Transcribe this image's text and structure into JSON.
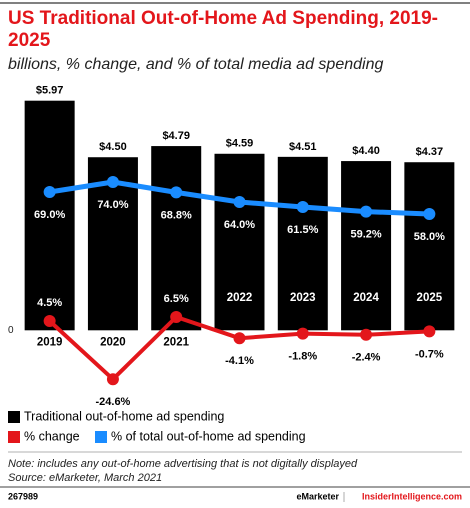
{
  "chart_data": {
    "type": "bar",
    "title": "US Traditional Out-of-Home Ad Spending, 2019-2025",
    "subtitle": "billions, % change, and % of total media ad spending",
    "categories": [
      "2019",
      "2020",
      "2021",
      "2022",
      "2023",
      "2024",
      "2025"
    ],
    "series": [
      {
        "name": "Traditional out-of-home ad spending",
        "type": "bar",
        "color": "#000000",
        "values": [
          5.97,
          4.5,
          4.79,
          4.59,
          4.51,
          4.4,
          4.37
        ],
        "value_labels": [
          "$5.97",
          "$4.50",
          "$4.79",
          "$4.59",
          "$4.51",
          "$4.40",
          "$4.37"
        ]
      },
      {
        "name": "% change",
        "type": "line",
        "axis": "y2",
        "color": "#e3161b",
        "values": [
          4.5,
          -24.6,
          6.5,
          -4.1,
          -1.8,
          -2.4,
          -0.7
        ],
        "value_labels": [
          "4.5%",
          "-24.6%",
          "6.5%",
          "-4.1%",
          "-1.8%",
          "-2.4%",
          "-0.7%"
        ]
      },
      {
        "name": "% of total out-of-home ad spending",
        "type": "line",
        "axis": "y2",
        "color": "#1a8cff",
        "values": [
          69.0,
          74.0,
          68.8,
          64.0,
          61.5,
          59.2,
          58.0
        ],
        "value_labels": [
          "69.0%",
          "74.0%",
          "68.8%",
          "64.0%",
          "61.5%",
          "59.2%",
          "58.0%"
        ]
      }
    ],
    "ylim": [
      -1.5,
      6.3
    ],
    "yticks": [
      0
    ],
    "y2lim": [
      -29,
      121
    ],
    "grid": false,
    "legend": "bottom-left",
    "note": "Note: includes any out-of-home advertising that is not digitally displayed",
    "source": "Source: eMarketer, March 2021",
    "chart_id": "267989",
    "brand": "eMarketer",
    "brand_site": "InsiderIntelligence.com"
  }
}
